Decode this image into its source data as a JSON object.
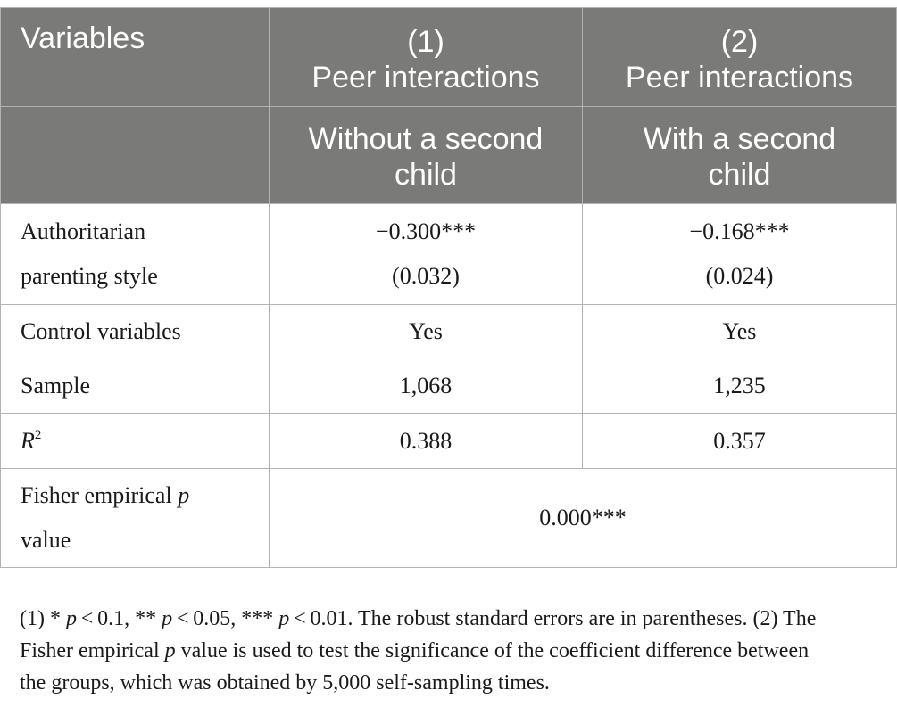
{
  "table": {
    "header": {
      "variables_label": "Variables",
      "col1_number": "(1)",
      "col1_title": "Peer interactions",
      "col1_group_line1": "Without a second",
      "col1_group_line2": "child",
      "col2_number": "(2)",
      "col2_title": "Peer interactions",
      "col2_group_line1": "With a second",
      "col2_group_line2": "child"
    },
    "rows": {
      "authoritarian": {
        "label_line1": "Authoritarian",
        "label_line2": "parenting style",
        "col1_coef": "−0.300***",
        "col1_se": "(0.032)",
        "col2_coef": "−0.168***",
        "col2_se": "(0.024)"
      },
      "controls": {
        "label": "Control variables",
        "col1": "Yes",
        "col2": "Yes"
      },
      "sample": {
        "label": "Sample",
        "col1": "1,068",
        "col2": "1,235"
      },
      "r2": {
        "label_letter": "R",
        "label_sup": "2",
        "col1": "0.388",
        "col2": "0.357"
      },
      "fisher": {
        "label_line1_prefix": "Fisher empirical ",
        "label_line1_italic": "p",
        "label_line2": "value",
        "value": "0.000***"
      }
    }
  },
  "footnote": {
    "line1_parts": [
      "(1) * ",
      "p",
      " < 0.1, ** ",
      "p",
      " < 0.05, *** ",
      "p",
      " < 0.01. The robust standard errors are in parentheses. (2) The"
    ],
    "line2_parts": [
      "Fisher empirical ",
      "p",
      " value is used to test the significance of the coefficient difference between"
    ],
    "line3": "the groups, which was obtained by 5,000 self-sampling times."
  }
}
